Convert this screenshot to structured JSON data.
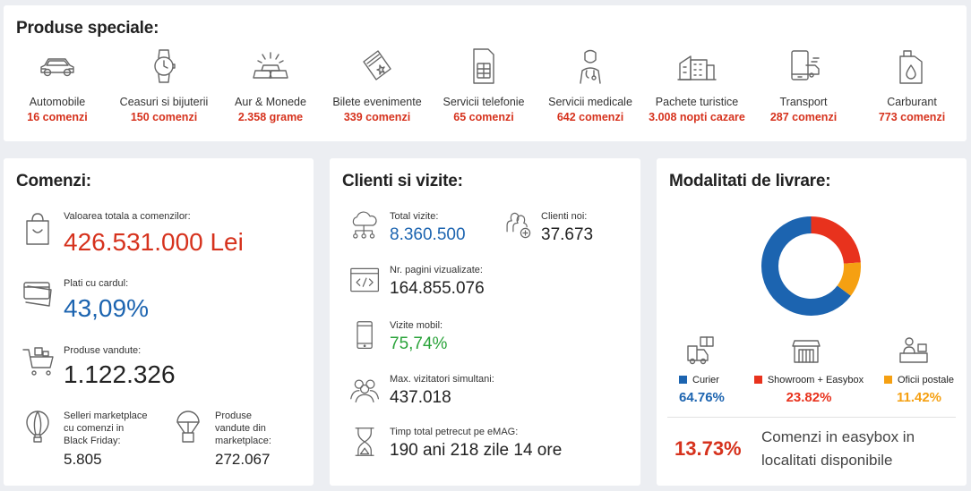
{
  "special_products": {
    "title": "Produse speciale:",
    "items": [
      {
        "icon": "car-icon",
        "name": "Automobile",
        "count": "16 comenzi"
      },
      {
        "icon": "watch-icon",
        "name": "Ceasuri si bijuterii",
        "count": "150 comenzi"
      },
      {
        "icon": "gold-bars-icon",
        "name": "Aur & Monede",
        "count": "2.358 grame"
      },
      {
        "icon": "ticket-icon",
        "name": "Bilete evenimente",
        "count": "339 comenzi"
      },
      {
        "icon": "sim-card-icon",
        "name": "Servicii telefonie",
        "count": "65 comenzi"
      },
      {
        "icon": "doctor-icon",
        "name": "Servicii medicale",
        "count": "642 comenzi"
      },
      {
        "icon": "hotel-icon",
        "name": "Pachete turistice",
        "count": "3.008 nopti cazare"
      },
      {
        "icon": "transport-icon",
        "name": "Transport",
        "count": "287 comenzi"
      },
      {
        "icon": "fuel-can-icon",
        "name": "Carburant",
        "count": "773 comenzi"
      }
    ]
  },
  "orders": {
    "title": "Comenzi:",
    "total_label": "Valoarea totala a comenzilor:",
    "total_value": "426.531.000 Lei",
    "card_label": "Plati cu cardul:",
    "card_value": "43,09%",
    "sold_label": "Produse vandute:",
    "sold_value": "1.122.326",
    "sellers_label": [
      "Selleri marketplace",
      "cu comenzi in",
      "Black Friday:"
    ],
    "sellers_value": "5.805",
    "mp_label": [
      "Produse",
      "vandute din",
      "marketplace:"
    ],
    "mp_value": "272.067"
  },
  "clients": {
    "title": "Clienti si vizite:",
    "visits_label": "Total vizite:",
    "visits_value": "8.360.500",
    "new_label": "Clienti noi:",
    "new_value": "37.673",
    "pages_label": "Nr. pagini vizualizate:",
    "pages_value": "164.855.076",
    "mobile_label": "Vizite mobil:",
    "mobile_value": "75,74%",
    "simult_label": "Max. vizitatori simultani:",
    "simult_value": "437.018",
    "time_label": "Timp total petrecut pe eMAG:",
    "time_value": "190 ani 218 zile 14 ore"
  },
  "delivery": {
    "title": "Modalitati de livrare:",
    "chart_data": {
      "type": "pie",
      "categories": [
        "Curier",
        "Showroom + Easybox",
        "Oficii postale"
      ],
      "values": [
        64.76,
        23.82,
        11.42
      ],
      "colors": [
        "#1c64b0",
        "#e8321d",
        "#f5a012"
      ]
    },
    "legend": [
      {
        "name": "Curier",
        "value": "64.76%",
        "color": "#1c64b0",
        "icon": "courier-icon"
      },
      {
        "name": "Showroom + Easybox",
        "value": "23.82%",
        "color": "#e8321d",
        "icon": "showroom-icon"
      },
      {
        "name": "Oficii postale",
        "value": "11.42%",
        "color": "#f5a012",
        "icon": "post-office-icon"
      }
    ],
    "easybox_value": "13.73%",
    "easybox_text": [
      "Comenzi in easybox in",
      "localitati disponibile"
    ]
  }
}
